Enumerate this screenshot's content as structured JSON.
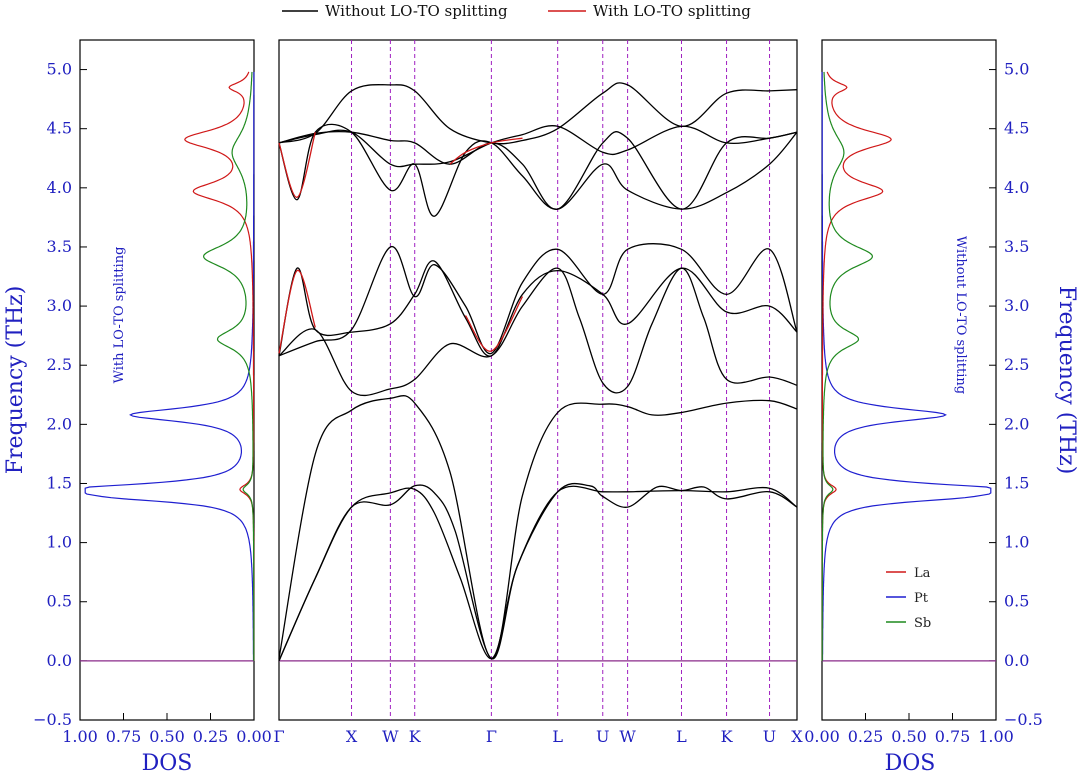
{
  "chart_data": [
    {
      "type": "line",
      "name": "left-dos",
      "title": "",
      "annotation": "With LO-TO splitting",
      "xlabel": "DOS",
      "ylabel": "Frequency (THz)",
      "xlim": [
        1.0,
        0.0
      ],
      "ylim": [
        -0.5,
        5.25
      ],
      "xticks": [
        "1.00",
        "0.75",
        "0.50",
        "0.25",
        "0.00"
      ],
      "yticks": [
        "−0.5",
        "0.0",
        "0.5",
        "1.0",
        "1.5",
        "2.0",
        "2.5",
        "3.0",
        "3.5",
        "4.0",
        "4.5",
        "5.0"
      ],
      "series": [
        {
          "name": "Pt",
          "color": "#1f1fd0",
          "peaks": [
            [
              1.45,
              0.93,
              0.06
            ],
            [
              2.08,
              0.7,
              0.07
            ],
            [
              1.38,
              0.42,
              0.05
            ]
          ]
        },
        {
          "name": "La",
          "color": "#d01818",
          "peaks": [
            [
              4.41,
              0.38,
              0.1
            ],
            [
              3.97,
              0.33,
              0.1
            ],
            [
              4.85,
              0.12,
              0.05
            ],
            [
              1.45,
              0.08,
              0.05
            ]
          ]
        },
        {
          "name": "Sb",
          "color": "#1f8a1f",
          "peaks": [
            [
              3.42,
              0.28,
              0.12
            ],
            [
              2.72,
              0.2,
              0.1
            ],
            [
              4.3,
              0.12,
              0.2
            ],
            [
              1.45,
              0.06,
              0.05
            ]
          ]
        }
      ]
    },
    {
      "type": "line",
      "name": "band-structure",
      "title": "",
      "xlabel": "",
      "ylabel": "",
      "ylim": [
        -0.5,
        5.25
      ],
      "legend": [
        {
          "label": "Without LO-TO splitting",
          "color": "#000000"
        },
        {
          "label": "With LO-TO splitting",
          "color": "#d01818"
        }
      ],
      "kpoints": [
        "Γ",
        "X",
        "W",
        "K",
        "Γ",
        "L",
        "U",
        "W",
        "L",
        "K",
        "U",
        "X"
      ],
      "kpoint_positions": [
        0.0,
        0.14,
        0.215,
        0.262,
        0.41,
        0.538,
        0.625,
        0.673,
        0.777,
        0.864,
        0.947,
        1.0
      ],
      "segments": [
        {
          "color": "#000000",
          "points": [
            [
              0,
              0.0
            ],
            [
              0.07,
              0.7
            ],
            [
              0.14,
              1.3
            ],
            [
              0.215,
              1.32
            ],
            [
              0.262,
              1.48
            ],
            [
              0.3,
              1.42
            ],
            [
              0.34,
              1.1
            ],
            [
              0.41,
              0.02
            ],
            [
              0.46,
              0.8
            ],
            [
              0.538,
              1.43
            ],
            [
              0.625,
              1.43
            ],
            [
              0.673,
              1.43
            ],
            [
              0.777,
              1.44
            ],
            [
              0.864,
              1.43
            ],
            [
              0.947,
              1.46
            ],
            [
              1.0,
              1.3
            ]
          ]
        },
        {
          "color": "#000000",
          "points": [
            [
              0,
              0.0
            ],
            [
              0.07,
              0.7
            ],
            [
              0.14,
              1.3
            ],
            [
              0.215,
              1.42
            ],
            [
              0.262,
              1.45
            ],
            [
              0.3,
              1.25
            ],
            [
              0.35,
              0.7
            ],
            [
              0.41,
              0.02
            ],
            [
              0.46,
              0.8
            ],
            [
              0.538,
              1.43
            ],
            [
              0.6,
              1.48
            ],
            [
              0.625,
              1.39
            ],
            [
              0.673,
              1.3
            ],
            [
              0.73,
              1.47
            ],
            [
              0.777,
              1.44
            ],
            [
              0.82,
              1.47
            ],
            [
              0.864,
              1.37
            ],
            [
              0.947,
              1.43
            ],
            [
              1.0,
              1.3
            ]
          ]
        },
        {
          "color": "#000000",
          "points": [
            [
              0,
              0.02
            ],
            [
              0.07,
              1.75
            ],
            [
              0.14,
              2.12
            ],
            [
              0.215,
              2.22
            ],
            [
              0.262,
              2.18
            ],
            [
              0.33,
              1.6
            ],
            [
              0.41,
              0.02
            ],
            [
              0.47,
              1.4
            ],
            [
              0.538,
              2.1
            ],
            [
              0.625,
              2.17
            ],
            [
              0.673,
              2.15
            ],
            [
              0.72,
              2.08
            ],
            [
              0.777,
              2.1
            ],
            [
              0.864,
              2.18
            ],
            [
              0.947,
              2.2
            ],
            [
              1.0,
              2.13
            ]
          ]
        },
        {
          "color": "#000000",
          "points": [
            [
              0,
              2.58
            ],
            [
              0.07,
              2.8
            ],
            [
              0.14,
              2.28
            ],
            [
              0.215,
              2.3
            ],
            [
              0.262,
              2.38
            ],
            [
              0.33,
              2.68
            ],
            [
              0.41,
              2.58
            ],
            [
              0.47,
              3.0
            ],
            [
              0.538,
              3.32
            ],
            [
              0.58,
              2.9
            ],
            [
              0.625,
              2.35
            ],
            [
              0.673,
              2.32
            ],
            [
              0.72,
              2.85
            ],
            [
              0.777,
              3.32
            ],
            [
              0.82,
              2.9
            ],
            [
              0.864,
              2.38
            ],
            [
              0.947,
              2.4
            ],
            [
              1.0,
              2.33
            ]
          ]
        },
        {
          "color": "#000000",
          "points": [
            [
              0,
              2.58
            ],
            [
              0.035,
              3.32
            ],
            [
              0.07,
              2.8
            ],
            [
              0.14,
              2.78
            ],
            [
              0.215,
              2.85
            ],
            [
              0.262,
              3.1
            ],
            [
              0.3,
              3.38
            ],
            [
              0.36,
              2.9
            ],
            [
              0.41,
              2.58
            ],
            [
              0.47,
              3.1
            ],
            [
              0.538,
              3.3
            ],
            [
              0.625,
              3.1
            ],
            [
              0.673,
              2.85
            ],
            [
              0.777,
              3.32
            ],
            [
              0.864,
              2.95
            ],
            [
              0.947,
              3.0
            ],
            [
              1.0,
              2.78
            ]
          ]
        },
        {
          "color": "#000000",
          "points": [
            [
              0,
              2.58
            ],
            [
              0.07,
              2.7
            ],
            [
              0.14,
              2.8
            ],
            [
              0.215,
              3.5
            ],
            [
              0.262,
              3.08
            ],
            [
              0.3,
              3.35
            ],
            [
              0.36,
              3.0
            ],
            [
              0.41,
              2.6
            ],
            [
              0.47,
              3.2
            ],
            [
              0.538,
              3.48
            ],
            [
              0.625,
              3.1
            ],
            [
              0.673,
              3.48
            ],
            [
              0.777,
              3.48
            ],
            [
              0.864,
              3.1
            ],
            [
              0.947,
              3.48
            ],
            [
              1.0,
              2.78
            ]
          ]
        },
        {
          "color": "#000000",
          "points": [
            [
              0,
              4.38
            ],
            [
              0.035,
              3.9
            ],
            [
              0.07,
              4.47
            ],
            [
              0.14,
              4.47
            ],
            [
              0.215,
              3.98
            ],
            [
              0.262,
              4.2
            ],
            [
              0.3,
              3.76
            ],
            [
              0.36,
              4.3
            ],
            [
              0.41,
              4.38
            ],
            [
              0.47,
              4.1
            ],
            [
              0.538,
              3.82
            ],
            [
              0.625,
              4.2
            ],
            [
              0.673,
              3.98
            ],
            [
              0.777,
              3.82
            ],
            [
              0.864,
              3.96
            ],
            [
              0.947,
              4.2
            ],
            [
              1.0,
              4.47
            ]
          ]
        },
        {
          "color": "#000000",
          "points": [
            [
              0,
              4.38
            ],
            [
              0.07,
              4.46
            ],
            [
              0.14,
              4.47
            ],
            [
              0.215,
              4.4
            ],
            [
              0.262,
              4.38
            ],
            [
              0.33,
              4.2
            ],
            [
              0.41,
              4.38
            ],
            [
              0.47,
              4.2
            ],
            [
              0.538,
              3.82
            ],
            [
              0.625,
              4.38
            ],
            [
              0.673,
              4.42
            ],
            [
              0.777,
              3.82
            ],
            [
              0.864,
              4.38
            ],
            [
              0.947,
              4.42
            ],
            [
              1.0,
              4.47
            ]
          ]
        },
        {
          "color": "#000000",
          "points": [
            [
              0,
              4.38
            ],
            [
              0.07,
              4.45
            ],
            [
              0.14,
              4.47
            ],
            [
              0.215,
              4.2
            ],
            [
              0.262,
              4.2
            ],
            [
              0.33,
              4.22
            ],
            [
              0.41,
              4.38
            ],
            [
              0.47,
              4.45
            ],
            [
              0.538,
              4.52
            ],
            [
              0.625,
              4.3
            ],
            [
              0.673,
              4.32
            ],
            [
              0.777,
              4.52
            ],
            [
              0.864,
              4.38
            ],
            [
              0.947,
              4.42
            ],
            [
              1.0,
              4.47
            ]
          ]
        },
        {
          "color": "#000000",
          "points": [
            [
              0,
              4.38
            ],
            [
              0.07,
              4.46
            ],
            [
              0.14,
              4.82
            ],
            [
              0.215,
              4.87
            ],
            [
              0.262,
              4.82
            ],
            [
              0.33,
              4.5
            ],
            [
              0.41,
              4.38
            ],
            [
              0.47,
              4.4
            ],
            [
              0.538,
              4.5
            ],
            [
              0.625,
              4.8
            ],
            [
              0.673,
              4.87
            ],
            [
              0.777,
              4.52
            ],
            [
              0.864,
              4.8
            ],
            [
              0.947,
              4.82
            ],
            [
              1.0,
              4.83
            ]
          ]
        },
        {
          "color": "#d01818",
          "points": [
            [
              0,
              4.38
            ],
            [
              0.035,
              3.92
            ],
            [
              0.07,
              4.47
            ]
          ]
        },
        {
          "color": "#d01818",
          "points": [
            [
              0.33,
              4.2
            ],
            [
              0.36,
              4.3
            ],
            [
              0.41,
              4.38
            ],
            [
              0.47,
              4.42
            ]
          ]
        },
        {
          "color": "#d01818",
          "points": [
            [
              0,
              2.6
            ],
            [
              0.035,
              3.3
            ],
            [
              0.07,
              2.82
            ]
          ]
        },
        {
          "color": "#d01818",
          "points": [
            [
              0.36,
              2.92
            ],
            [
              0.41,
              2.62
            ],
            [
              0.47,
              3.08
            ]
          ]
        }
      ]
    },
    {
      "type": "line",
      "name": "right-dos",
      "title": "",
      "annotation": "Without LO-TO splitting",
      "xlabel": "DOS",
      "ylabel": "Frequency (THz)",
      "xlim": [
        0.0,
        1.0
      ],
      "ylim": [
        -0.5,
        5.25
      ],
      "xticks": [
        "0.00",
        "0.25",
        "0.50",
        "0.75",
        "1.00"
      ],
      "yticks": [
        "−0.5",
        "0.0",
        "0.5",
        "1.0",
        "1.5",
        "2.0",
        "2.5",
        "3.0",
        "3.5",
        "4.0",
        "4.5",
        "5.0"
      ],
      "legend": [
        {
          "label": "La",
          "color": "#d01818"
        },
        {
          "label": "Pt",
          "color": "#1f1fd0"
        },
        {
          "label": "Sb",
          "color": "#1f8a1f"
        }
      ],
      "series": [
        {
          "name": "Pt",
          "color": "#1f1fd0",
          "peaks": [
            [
              1.45,
              0.93,
              0.06
            ],
            [
              2.08,
              0.7,
              0.07
            ],
            [
              1.38,
              0.42,
              0.05
            ]
          ]
        },
        {
          "name": "La",
          "color": "#d01818",
          "peaks": [
            [
              4.41,
              0.38,
              0.1
            ],
            [
              3.97,
              0.33,
              0.1
            ],
            [
              4.85,
              0.12,
              0.05
            ],
            [
              1.45,
              0.08,
              0.05
            ]
          ]
        },
        {
          "name": "Sb",
          "color": "#1f8a1f",
          "peaks": [
            [
              3.42,
              0.28,
              0.12
            ],
            [
              2.72,
              0.2,
              0.1
            ],
            [
              4.3,
              0.12,
              0.2
            ],
            [
              1.45,
              0.06,
              0.05
            ]
          ]
        }
      ]
    }
  ]
}
